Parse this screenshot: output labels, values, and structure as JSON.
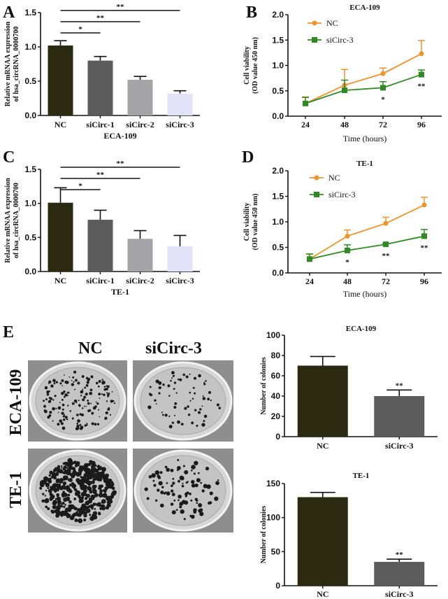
{
  "panels": {
    "A": "A",
    "B": "B",
    "C": "C",
    "D": "D",
    "E": "E"
  },
  "colony_images": {
    "column_labels": [
      "NC",
      "siCirc-3"
    ],
    "row_labels": [
      "ECA-109",
      "TE-1"
    ]
  },
  "colors": {
    "bar_nc": "#2b2a10",
    "bar_sicirc1": "#5c5c5c",
    "bar_sicirc2": "#a3a3a8",
    "bar_sicirc3": "#e2e2f8",
    "line_nc": "#f0932b",
    "line_sicirc3": "#2e8b23"
  },
  "chart_data": [
    {
      "panel": "A",
      "type": "bar",
      "title": "",
      "xlabel": "ECA-109",
      "ylabel": "Relative mRNAA expression of hsa_circRNA_0000700",
      "ylabel_lines": [
        "Relative mRNAA expression",
        "of hsa_circRNA_0000700"
      ],
      "categories": [
        "NC",
        "siCirc-1",
        "siCirc-2",
        "siCirc-3"
      ],
      "values": [
        1.02,
        0.8,
        0.52,
        0.32
      ],
      "errors": [
        0.07,
        0.06,
        0.05,
        0.04
      ],
      "bar_colors": [
        "#2b2a10",
        "#5c5c5c",
        "#a3a3a8",
        "#e2e2f8"
      ],
      "ylim": [
        0,
        1.5
      ],
      "yticks": [
        "0.0",
        "0.5",
        "1.0",
        "1.5"
      ],
      "significance": [
        {
          "from": "NC",
          "to": "siCirc-1",
          "label": "*"
        },
        {
          "from": "NC",
          "to": "siCirc-2",
          "label": "**"
        },
        {
          "from": "NC",
          "to": "siCirc-3",
          "label": "**"
        }
      ]
    },
    {
      "panel": "B",
      "type": "line",
      "title": "ECA-109",
      "xlabel": "Time (hours)",
      "ylabel": "Cell viability (OD value 450 nm)",
      "ylabel_lines": [
        "Cell viability",
        "(OD value 450 nm)"
      ],
      "x": [
        "24",
        "48",
        "72",
        "96"
      ],
      "ylim": [
        0,
        2.0
      ],
      "yticks": [
        "0.0",
        "0.5",
        "1.0",
        "1.5",
        "2.0"
      ],
      "legend": "top-left",
      "series": [
        {
          "name": "NC",
          "marker": "circle",
          "color": "#f0932b",
          "values": [
            0.25,
            0.61,
            0.84,
            1.23
          ],
          "errors": [
            0.13,
            0.31,
            0.11,
            0.26
          ]
        },
        {
          "name": "siCirc-3",
          "marker": "square",
          "color": "#2e8b23",
          "values": [
            0.25,
            0.51,
            0.56,
            0.82
          ],
          "errors": [
            0.12,
            0.2,
            0.12,
            0.09
          ]
        }
      ],
      "annotations": [
        {
          "x": "72",
          "label": "*"
        },
        {
          "x": "96",
          "label": "**"
        }
      ]
    },
    {
      "panel": "C",
      "type": "bar",
      "title": "",
      "xlabel": "TE-1",
      "ylabel": "Relative mRNAA expression of hsa_circRNA_0000700",
      "ylabel_lines": [
        "Relative mRNAA expression",
        "of hsa_circRNA_0000700"
      ],
      "categories": [
        "NC",
        "siCirc-1",
        "siCirc-2",
        "siCirc-3"
      ],
      "values": [
        1.01,
        0.76,
        0.48,
        0.37
      ],
      "errors": [
        0.22,
        0.14,
        0.12,
        0.16
      ],
      "bar_colors": [
        "#2b2a10",
        "#5c5c5c",
        "#a3a3a8",
        "#e2e2f8"
      ],
      "ylim": [
        0,
        1.5
      ],
      "yticks": [
        "0.0",
        "0.5",
        "1.0",
        "1.5"
      ],
      "significance": [
        {
          "from": "NC",
          "to": "siCirc-1",
          "label": "*"
        },
        {
          "from": "NC",
          "to": "siCirc-2",
          "label": "**"
        },
        {
          "from": "NC",
          "to": "siCirc-3",
          "label": "**"
        }
      ]
    },
    {
      "panel": "D",
      "type": "line",
      "title": "TE-1",
      "xlabel": "Time (hours)",
      "ylabel": "Cell viability (OD value 450 nm)",
      "ylabel_lines": [
        "Cell viability",
        "(OD value 450 nm)"
      ],
      "x": [
        "24",
        "48",
        "72",
        "96"
      ],
      "ylim": [
        0,
        2.0
      ],
      "yticks": [
        "0.0",
        "0.5",
        "1.0",
        "1.5",
        "2.0"
      ],
      "legend": "top-left",
      "series": [
        {
          "name": "NC",
          "marker": "circle",
          "color": "#f0932b",
          "values": [
            0.27,
            0.72,
            0.97,
            1.33
          ],
          "errors": [
            0.1,
            0.12,
            0.12,
            0.15
          ]
        },
        {
          "name": "siCirc-3",
          "marker": "square",
          "color": "#2e8b23",
          "values": [
            0.27,
            0.44,
            0.56,
            0.72
          ],
          "errors": [
            0.1,
            0.11,
            0.02,
            0.13
          ]
        }
      ],
      "annotations": [
        {
          "x": "48",
          "label": "*"
        },
        {
          "x": "72",
          "label": "**"
        },
        {
          "x": "96",
          "label": "**"
        }
      ]
    },
    {
      "panel": "E",
      "type": "bar",
      "title": "ECA-109",
      "xlabel": "",
      "ylabel": "Number of colonies",
      "ylabel_lines": [
        "Number of colonies"
      ],
      "categories": [
        "NC",
        "siCirc-3"
      ],
      "values": [
        70,
        40
      ],
      "errors": [
        9,
        6
      ],
      "bar_colors": [
        "#2b2a10",
        "#5c5c5c"
      ],
      "ylim": [
        0,
        100
      ],
      "yticks": [
        "0",
        "20",
        "40",
        "60",
        "80",
        "100"
      ],
      "annotations": [
        {
          "category": "siCirc-3",
          "label": "**"
        }
      ]
    },
    {
      "panel": "E",
      "type": "bar",
      "title": "TE-1",
      "xlabel": "",
      "ylabel": "Number of colonies",
      "ylabel_lines": [
        "Number of colonies"
      ],
      "categories": [
        "NC",
        "siCirc-3"
      ],
      "values": [
        130,
        35
      ],
      "errors": [
        7,
        4
      ],
      "bar_colors": [
        "#2b2a10",
        "#5c5c5c"
      ],
      "ylim": [
        0,
        150
      ],
      "yticks": [
        "0",
        "50",
        "100",
        "150"
      ],
      "annotations": [
        {
          "category": "siCirc-3",
          "label": "**"
        }
      ]
    }
  ]
}
